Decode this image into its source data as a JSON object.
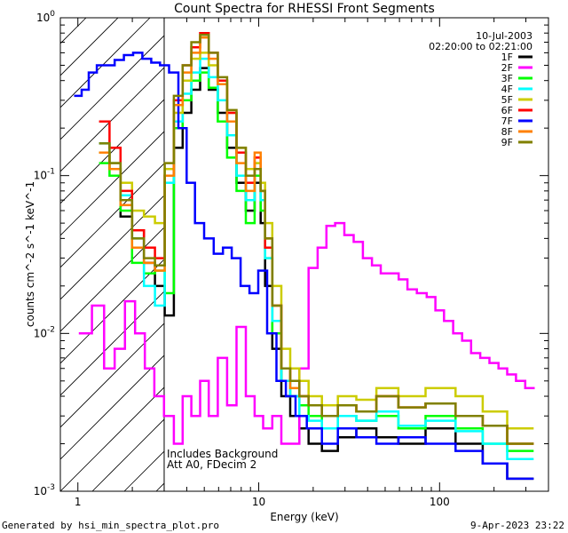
{
  "chart_data": {
    "type": "line",
    "title": "Count Spectra for RHESSI Front Segments",
    "xlabel": "Energy (keV)",
    "ylabel": "counts cm^-2 s^-1 keV^-1",
    "xscale": "log",
    "yscale": "log",
    "xlim": [
      0.8,
      400
    ],
    "ylim": [
      0.001,
      1
    ],
    "x_ticks": [
      "1",
      "10",
      "100"
    ],
    "y_ticks": [
      "10^-3",
      "10^-2",
      "10^-1",
      "10^0"
    ],
    "date": "10-Jul-2003",
    "time_range": "02:20:00 to 02:21:00",
    "annotations": [
      "Includes Background",
      "Att A0, FDecim 2"
    ],
    "shaded_region_keV": [
      0.8,
      3.0
    ],
    "series": [
      {
        "name": "1F",
        "color": "#000000",
        "x": [
          1.4,
          1.6,
          1.85,
          2.15,
          2.5,
          2.85,
          3.2,
          3.6,
          4.0,
          4.5,
          5.0,
          5.6,
          6.3,
          7.1,
          8.0,
          9.0,
          10.0,
          10.5,
          11.2,
          12.6,
          14.1,
          15.8,
          17.8,
          20,
          25,
          30,
          40,
          50,
          70,
          100,
          150,
          200,
          280
        ],
        "y": [
          0.14,
          0.11,
          0.055,
          0.045,
          0.028,
          0.02,
          0.013,
          0.15,
          0.25,
          0.35,
          0.48,
          0.35,
          0.25,
          0.15,
          0.09,
          0.06,
          0.09,
          0.05,
          0.02,
          0.008,
          0.004,
          0.003,
          0.0025,
          0.002,
          0.0018,
          0.0022,
          0.0025,
          0.0022,
          0.002,
          0.0025,
          0.002,
          0.0015,
          0.0012
        ]
      },
      {
        "name": "2F",
        "color": "#ff00ff",
        "x": [
          1.1,
          1.3,
          1.5,
          1.7,
          1.95,
          2.2,
          2.5,
          2.8,
          3.2,
          3.6,
          4.0,
          4.5,
          5.0,
          5.6,
          6.3,
          7.1,
          8.0,
          9.0,
          10.0,
          11.2,
          12.6,
          14.1,
          15.8,
          17.8,
          20,
          22.4,
          25,
          28,
          31.6,
          35.5,
          40,
          44.7,
          50,
          56,
          63,
          70,
          80,
          90,
          100,
          112,
          126,
          141,
          158,
          178,
          200,
          224,
          250,
          280,
          316
        ],
        "y": [
          0.01,
          0.015,
          0.006,
          0.008,
          0.016,
          0.01,
          0.006,
          0.004,
          0.003,
          0.002,
          0.004,
          0.003,
          0.005,
          0.003,
          0.007,
          0.0035,
          0.011,
          0.004,
          0.003,
          0.0025,
          0.003,
          0.002,
          0.002,
          0.006,
          0.026,
          0.035,
          0.048,
          0.05,
          0.042,
          0.038,
          0.03,
          0.027,
          0.024,
          0.024,
          0.022,
          0.019,
          0.018,
          0.017,
          0.014,
          0.012,
          0.01,
          0.009,
          0.0075,
          0.007,
          0.0065,
          0.006,
          0.0055,
          0.005,
          0.0045
        ]
      },
      {
        "name": "3F",
        "color": "#00ff00",
        "x": [
          1.4,
          1.6,
          1.85,
          2.15,
          2.5,
          2.85,
          3.2,
          3.6,
          4.0,
          4.5,
          5.0,
          5.6,
          6.3,
          7.1,
          8.0,
          9.0,
          10.0,
          10.5,
          11.2,
          12.6,
          14.1,
          15.8,
          17.8,
          20,
          25,
          30,
          40,
          50,
          70,
          100,
          150,
          200,
          280
        ],
        "y": [
          0.12,
          0.1,
          0.06,
          0.028,
          0.024,
          0.025,
          0.018,
          0.2,
          0.3,
          0.4,
          0.45,
          0.36,
          0.22,
          0.13,
          0.08,
          0.05,
          0.1,
          0.06,
          0.03,
          0.01,
          0.005,
          0.004,
          0.0035,
          0.003,
          0.0025,
          0.003,
          0.0028,
          0.003,
          0.0025,
          0.003,
          0.0025,
          0.002,
          0.0018
        ]
      },
      {
        "name": "4F",
        "color": "#00ffff",
        "x": [
          1.4,
          1.6,
          1.85,
          2.15,
          2.5,
          2.85,
          3.2,
          3.6,
          4.0,
          4.5,
          5.0,
          5.6,
          6.3,
          7.1,
          8.0,
          9.0,
          10.0,
          10.5,
          11.2,
          12.6,
          14.1,
          15.8,
          17.8,
          20,
          25,
          30,
          40,
          50,
          70,
          100,
          150,
          200,
          280
        ],
        "y": [
          0.16,
          0.12,
          0.075,
          0.04,
          0.02,
          0.015,
          0.09,
          0.22,
          0.33,
          0.45,
          0.55,
          0.42,
          0.3,
          0.18,
          0.1,
          0.07,
          0.12,
          0.07,
          0.03,
          0.012,
          0.005,
          0.004,
          0.003,
          0.0028,
          0.0025,
          0.003,
          0.0028,
          0.0032,
          0.0026,
          0.0028,
          0.0024,
          0.002,
          0.0016
        ]
      },
      {
        "name": "5F",
        "color": "#cccc00",
        "x": [
          1.4,
          1.6,
          1.85,
          2.15,
          2.5,
          2.85,
          3.2,
          3.6,
          4.0,
          4.5,
          5.0,
          5.6,
          6.3,
          7.1,
          8.0,
          9.0,
          10.0,
          10.5,
          11.2,
          12.6,
          14.1,
          15.8,
          17.8,
          20,
          25,
          30,
          40,
          50,
          70,
          100,
          150,
          200,
          280
        ],
        "y": [
          0.14,
          0.12,
          0.09,
          0.06,
          0.055,
          0.05,
          0.11,
          0.25,
          0.4,
          0.55,
          0.6,
          0.5,
          0.4,
          0.25,
          0.15,
          0.11,
          0.12,
          0.09,
          0.05,
          0.02,
          0.008,
          0.006,
          0.005,
          0.004,
          0.0035,
          0.004,
          0.0038,
          0.0045,
          0.004,
          0.0045,
          0.004,
          0.0032,
          0.0025
        ]
      },
      {
        "name": "6F",
        "color": "#ff0000",
        "x": [
          1.4,
          1.6,
          1.85,
          2.15,
          2.5,
          2.85,
          3.2,
          3.6,
          4.0,
          4.5,
          5.0,
          5.6,
          6.3,
          7.1,
          8.0,
          9.0,
          10.0,
          10.5,
          11.2,
          12.6,
          14.1,
          15.8,
          17.8,
          20,
          25,
          30,
          40,
          50,
          70,
          100,
          150,
          200,
          280
        ],
        "y": [
          0.22,
          0.15,
          0.08,
          0.045,
          0.035,
          0.03,
          0.1,
          0.3,
          0.5,
          0.65,
          0.8,
          0.6,
          0.4,
          0.25,
          0.14,
          0.09,
          0.13,
          0.08,
          0.035,
          0.015,
          0.006,
          0.005,
          0.004,
          0.0035,
          0.003,
          0.0035,
          0.0032,
          0.004,
          0.0034,
          0.0036,
          0.003,
          0.0026,
          0.002
        ]
      },
      {
        "name": "7F",
        "color": "#0000ff",
        "x": [
          1.0,
          1.1,
          1.2,
          1.35,
          1.5,
          1.7,
          1.9,
          2.15,
          2.4,
          2.7,
          3.0,
          3.4,
          3.8,
          4.2,
          4.7,
          5.3,
          6.0,
          6.7,
          7.5,
          8.4,
          9.4,
          10.5,
          11.8,
          13.3,
          15,
          17,
          20,
          25,
          30,
          40,
          50,
          70,
          100,
          150,
          200,
          280
        ],
        "y": [
          0.32,
          0.35,
          0.45,
          0.5,
          0.5,
          0.54,
          0.58,
          0.6,
          0.55,
          0.52,
          0.5,
          0.45,
          0.2,
          0.09,
          0.05,
          0.04,
          0.032,
          0.035,
          0.03,
          0.02,
          0.018,
          0.025,
          0.01,
          0.005,
          0.004,
          0.003,
          0.0025,
          0.002,
          0.0025,
          0.0022,
          0.002,
          0.0022,
          0.002,
          0.0018,
          0.0015,
          0.0012
        ]
      },
      {
        "name": "8F",
        "color": "#ff8000",
        "x": [
          1.4,
          1.6,
          1.85,
          2.15,
          2.5,
          2.85,
          3.2,
          3.6,
          4.0,
          4.5,
          5.0,
          5.6,
          6.3,
          7.1,
          8.0,
          9.0,
          10.0,
          10.5,
          11.2,
          12.6,
          14.1,
          15.8,
          17.8,
          20,
          25,
          30,
          40,
          50,
          70,
          100,
          150,
          200,
          280
        ],
        "y": [
          0.14,
          0.11,
          0.065,
          0.035,
          0.028,
          0.025,
          0.1,
          0.28,
          0.45,
          0.6,
          0.75,
          0.55,
          0.38,
          0.22,
          0.12,
          0.08,
          0.14,
          0.08,
          0.04,
          0.015,
          0.006,
          0.0045,
          0.004,
          0.0035,
          0.003,
          0.0035,
          0.0032,
          0.004,
          0.0034,
          0.0036,
          0.003,
          0.0026,
          0.002
        ]
      },
      {
        "name": "9F",
        "color": "#808000",
        "x": [
          1.4,
          1.6,
          1.85,
          2.15,
          2.5,
          2.85,
          3.2,
          3.6,
          4.0,
          4.5,
          5.0,
          5.6,
          6.3,
          7.1,
          8.0,
          9.0,
          10.0,
          10.5,
          11.2,
          12.6,
          14.1,
          15.8,
          17.8,
          20,
          25,
          30,
          40,
          50,
          70,
          100,
          150,
          200,
          280
        ],
        "y": [
          0.16,
          0.12,
          0.07,
          0.04,
          0.03,
          0.027,
          0.12,
          0.32,
          0.5,
          0.7,
          0.78,
          0.6,
          0.42,
          0.26,
          0.15,
          0.1,
          0.11,
          0.08,
          0.04,
          0.015,
          0.006,
          0.005,
          0.004,
          0.0035,
          0.003,
          0.0035,
          0.0032,
          0.004,
          0.0034,
          0.0036,
          0.003,
          0.0026,
          0.002
        ]
      }
    ]
  },
  "footer": {
    "left": "Generated by hsi_min_spectra_plot.pro",
    "right": "9-Apr-2023 23:22"
  }
}
